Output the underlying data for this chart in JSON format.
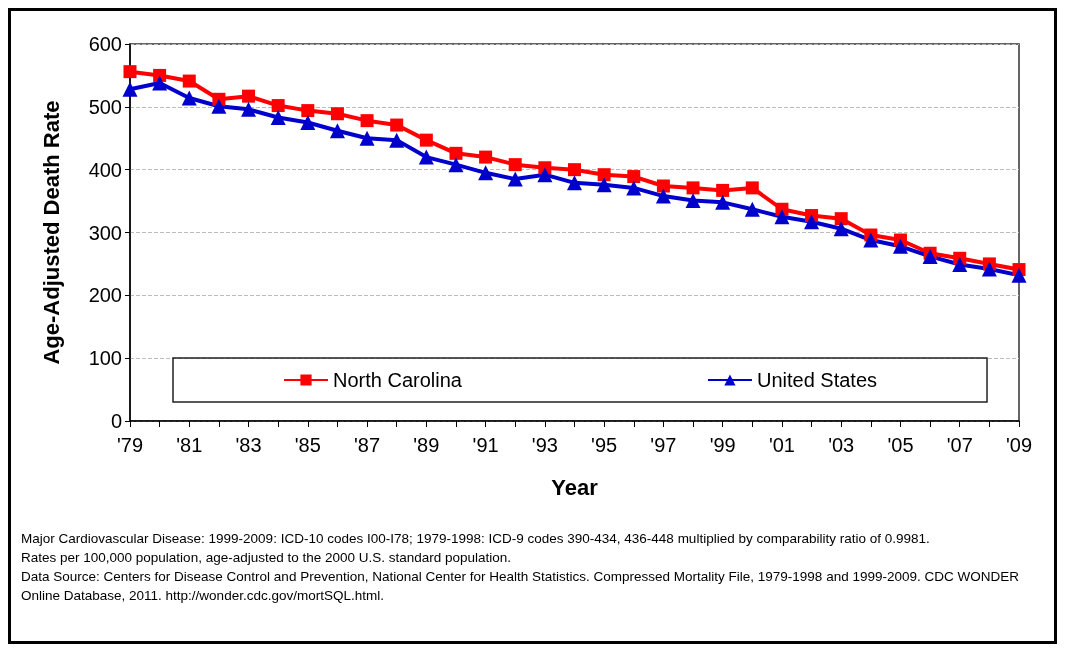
{
  "chart_data": {
    "type": "line",
    "xlabel": "Year",
    "ylabel": "Age-Adjusted Death Rate",
    "categories": [
      "'79",
      null,
      "'81",
      null,
      "'83",
      null,
      "'85",
      null,
      "'87",
      null,
      "'89",
      null,
      "'91",
      null,
      "'93",
      null,
      "'95",
      null,
      "'97",
      null,
      "'99",
      null,
      "'01",
      null,
      "'03",
      null,
      "'05",
      null,
      "'07",
      null,
      "'09"
    ],
    "series": [
      {
        "name": "North Carolina",
        "color": "#ff0000",
        "marker": "square",
        "values": [
          556,
          550,
          541,
          512,
          517,
          502,
          494,
          489,
          478,
          471,
          447,
          426,
          420,
          408,
          403,
          400,
          392,
          389,
          374,
          371,
          367,
          371,
          337,
          327,
          322,
          296,
          288,
          267,
          259,
          250,
          241
        ]
      },
      {
        "name": "United States",
        "color": "#0000cc",
        "marker": "triangle",
        "values": [
          528,
          538,
          514,
          501,
          496,
          483,
          475,
          462,
          450,
          447,
          420,
          408,
          395,
          385,
          392,
          379,
          376,
          371,
          358,
          351,
          348,
          337,
          325,
          317,
          306,
          288,
          278,
          262,
          249,
          242,
          232
        ]
      }
    ],
    "ylim": [
      0,
      600
    ],
    "yticks": [
      0,
      100,
      200,
      300,
      400,
      500,
      600
    ],
    "grid": "y",
    "legend": "bottom",
    "line_style": "solid",
    "annotations": [
      "Major Cardiovascular Disease: 1999-2009:  ICD-10 codes I00-I78; 1979-1998:  ICD-9 codes 390-434, 436-448 multiplied by comparability ratio of 0.9981.",
      "Rates per 100,000  population, age-adjusted to the 2000  U.S. standard population.",
      "Data Source: Centers for Disease Control and Prevention, National Center for Health Statistics. Compressed Mortality File, 1979-1998 and 1999-2009.  CDC WONDER Online Database, 2011. http://wonder.cdc.gov/mortSQL.html."
    ]
  }
}
